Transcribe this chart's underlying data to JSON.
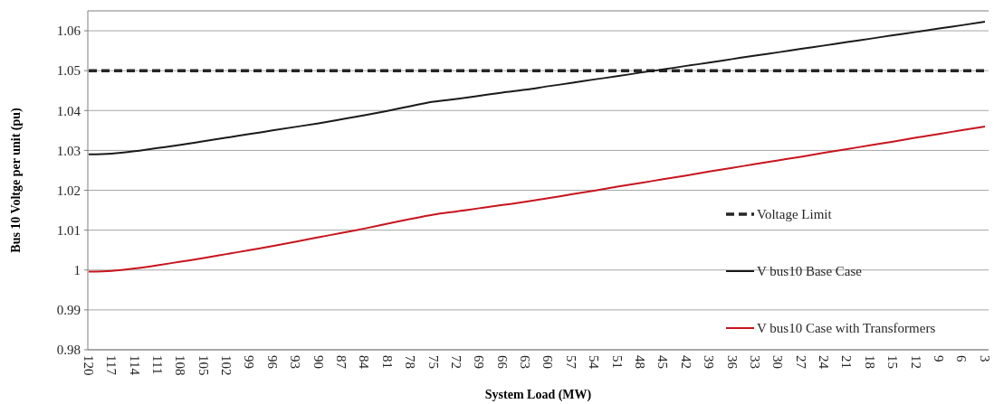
{
  "chart_data": {
    "type": "line",
    "xlabel": "System Load (MW)",
    "ylabel": "Bus 10 Voltge per unit  (pu)",
    "categories": [
      "120",
      "117",
      "114",
      "111",
      "108",
      "105",
      "102",
      "99",
      "96",
      "93",
      "90",
      "87",
      "84",
      "81",
      "78",
      "75",
      "72",
      "69",
      "66",
      "63",
      "60",
      "57",
      "54",
      "51",
      "48",
      "45",
      "42",
      "39",
      "36",
      "33",
      "30",
      "27",
      "24",
      "21",
      "18",
      "15",
      "12",
      "9",
      "6",
      "3"
    ],
    "series": [
      {
        "name": "Voltage Limit",
        "color": "#262626",
        "line_style": "dashed",
        "values": [
          1.05,
          1.05,
          1.05,
          1.05,
          1.05,
          1.05,
          1.05,
          1.05,
          1.05,
          1.05,
          1.05,
          1.05,
          1.05,
          1.05,
          1.05,
          1.05,
          1.05,
          1.05,
          1.05,
          1.05,
          1.05,
          1.05,
          1.05,
          1.05,
          1.05,
          1.05,
          1.05,
          1.05,
          1.05,
          1.05,
          1.05,
          1.05,
          1.05,
          1.05,
          1.05,
          1.05,
          1.05,
          1.05,
          1.05,
          1.05
        ]
      },
      {
        "name": "V bus10 Base Case",
        "color": "#1a1a1a",
        "line_style": "solid",
        "values": [
          1.029,
          1.0292,
          1.0298,
          1.0306,
          1.0314,
          1.0323,
          1.0332,
          1.0341,
          1.035,
          1.0359,
          1.0368,
          1.0378,
          1.0388,
          1.0399,
          1.0411,
          1.0422,
          1.0429,
          1.0437,
          1.0445,
          1.0452,
          1.0461,
          1.0469,
          1.0478,
          1.0486,
          1.0495,
          1.0503,
          1.0512,
          1.052,
          1.0529,
          1.0538,
          1.0546,
          1.0555,
          1.0563,
          1.0572,
          1.058,
          1.0589,
          1.0597,
          1.0606,
          1.0614,
          1.0623
        ]
      },
      {
        "name": "V bus10 Case with Transformers",
        "color": "#c8141e",
        "line_style": "solid",
        "values": [
          0.9996,
          0.9998,
          1.0004,
          1.0012,
          1.0021,
          1.003,
          1.004,
          1.005,
          1.006,
          1.0071,
          1.0082,
          1.0093,
          1.0104,
          1.0116,
          1.0128,
          1.0139,
          1.0147,
          1.0155,
          1.0163,
          1.0171,
          1.018,
          1.019,
          1.0199,
          1.0209,
          1.0218,
          1.0228,
          1.0237,
          1.0247,
          1.0256,
          1.0266,
          1.0275,
          1.0284,
          1.0294,
          1.0303,
          1.0313,
          1.0322,
          1.0332,
          1.0341,
          1.0351,
          1.036
        ]
      }
    ],
    "ylim": [
      0.98,
      1.065
    ],
    "yticks": [
      0.98,
      0.99,
      1,
      1.01,
      1.02,
      1.03,
      1.04,
      1.05,
      1.06
    ],
    "grid": "y",
    "legend": "right",
    "marker": "none"
  }
}
